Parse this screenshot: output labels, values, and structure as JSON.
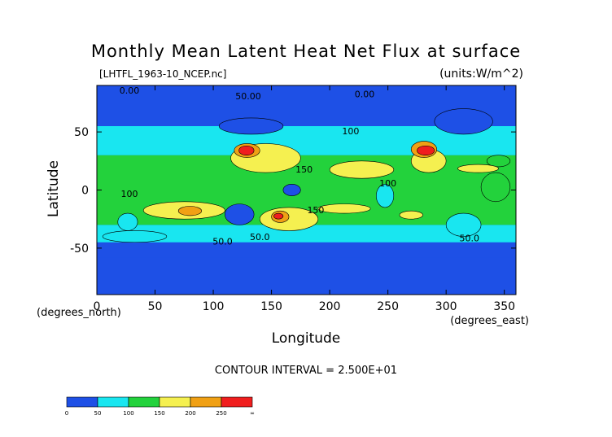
{
  "chart_data": {
    "type": "heatmap",
    "title": "Monthly Mean Latent Heat Net Flux at surface",
    "source_label": "[LHTFL_1963-10_NCEP.nc]",
    "units_label": "(units:W/m^2)",
    "xlabel": "Longitude",
    "ylabel": "Latitude",
    "x_units": "(degrees_east)",
    "y_units": "(degrees_north)",
    "xlim": [
      0,
      360
    ],
    "ylim": [
      -90,
      90
    ],
    "x_ticks": [
      0,
      50,
      100,
      150,
      200,
      250,
      300,
      350
    ],
    "y_ticks": [
      -50,
      0,
      50
    ],
    "contour_interval_text": "CONTOUR INTERVAL = 2.500E+01",
    "contour_labels": [
      {
        "text": "0.00",
        "x": 28,
        "y": 83
      },
      {
        "text": "50.00",
        "x": 130,
        "y": 78
      },
      {
        "text": "0.00",
        "x": 230,
        "y": 80
      },
      {
        "text": "100",
        "x": 218,
        "y": 48
      },
      {
        "text": "150",
        "x": 178,
        "y": 15
      },
      {
        "text": "100",
        "x": 250,
        "y": 3
      },
      {
        "text": "100",
        "x": 28,
        "y": -6
      },
      {
        "text": "150",
        "x": 188,
        "y": -20
      },
      {
        "text": "50.0",
        "x": 108,
        "y": -47
      },
      {
        "text": "50.0",
        "x": 140,
        "y": -43
      },
      {
        "text": "50.0",
        "x": 320,
        "y": -44
      }
    ],
    "grid": false,
    "legend": {
      "position": "bottom-left",
      "colors": [
        "#1e50e6",
        "#19e6f0",
        "#23d23c",
        "#f5f050",
        "#f0a014",
        "#f01e1e"
      ],
      "boundaries": [
        "0",
        "50",
        "100",
        "150",
        "200",
        "250",
        "∞"
      ]
    },
    "fields": {
      "background_level": 0,
      "band_levels": [
        {
          "lat": [
            -90,
            -75
          ],
          "level": 0
        },
        {
          "lat": [
            -75,
            -58
          ],
          "level": 0
        },
        {
          "lat": [
            -58,
            -45
          ],
          "level": 0
        },
        {
          "lat": [
            -45,
            -30
          ],
          "level": 1
        },
        {
          "lat": [
            -30,
            30
          ],
          "level": 2
        },
        {
          "lat": [
            30,
            55
          ],
          "level": 1
        },
        {
          "lat": [
            55,
            90
          ],
          "level": 0
        }
      ],
      "patches": [
        {
          "lon": [
            105,
            160
          ],
          "lat": [
            48,
            62
          ],
          "level": 0
        },
        {
          "lon": [
            290,
            340
          ],
          "lat": [
            48,
            70
          ],
          "level": 0
        },
        {
          "lon": [
            110,
            135
          ],
          "lat": [
            -30,
            -12
          ],
          "level": 0
        },
        {
          "lon": [
            160,
            175
          ],
          "lat": [
            -5,
            5
          ],
          "level": 0
        },
        {
          "lon": [
            240,
            255
          ],
          "lat": [
            -15,
            5
          ],
          "level": 1
        },
        {
          "lon": [
            5,
            60
          ],
          "lat": [
            -45,
            -35
          ],
          "level": 1
        },
        {
          "lon": [
            18,
            35
          ],
          "lat": [
            -35,
            -20
          ],
          "level": 1
        },
        {
          "lon": [
            300,
            330
          ],
          "lat": [
            -40,
            -20
          ],
          "level": 1
        },
        {
          "lon": [
            330,
            355
          ],
          "lat": [
            -10,
            15
          ],
          "level": 2
        },
        {
          "lon": [
            335,
            355
          ],
          "lat": [
            20,
            30
          ],
          "level": 2
        },
        {
          "lon": [
            115,
            175
          ],
          "lat": [
            15,
            40
          ],
          "level": 3
        },
        {
          "lon": [
            200,
            255
          ],
          "lat": [
            10,
            25
          ],
          "level": 3
        },
        {
          "lon": [
            270,
            300
          ],
          "lat": [
            15,
            35
          ],
          "level": 3
        },
        {
          "lon": [
            310,
            345
          ],
          "lat": [
            15,
            22
          ],
          "level": 3
        },
        {
          "lon": [
            40,
            110
          ],
          "lat": [
            -25,
            -10
          ],
          "level": 3
        },
        {
          "lon": [
            140,
            190
          ],
          "lat": [
            -35,
            -15
          ],
          "level": 3
        },
        {
          "lon": [
            190,
            235
          ],
          "lat": [
            -20,
            -12
          ],
          "level": 3
        },
        {
          "lon": [
            260,
            280
          ],
          "lat": [
            -25,
            -18
          ],
          "level": 3
        },
        {
          "lon": [
            118,
            140
          ],
          "lat": [
            28,
            40
          ],
          "level": 4
        },
        {
          "lon": [
            270,
            292
          ],
          "lat": [
            28,
            42
          ],
          "level": 4
        },
        {
          "lon": [
            150,
            165
          ],
          "lat": [
            -28,
            -18
          ],
          "level": 4
        },
        {
          "lon": [
            70,
            90
          ],
          "lat": [
            -22,
            -14
          ],
          "level": 4
        },
        {
          "lon": [
            122,
            135
          ],
          "lat": [
            30,
            38
          ],
          "level": 5
        },
        {
          "lon": [
            275,
            290
          ],
          "lat": [
            30,
            38
          ],
          "level": 5
        },
        {
          "lon": [
            152,
            160
          ],
          "lat": [
            -25,
            -20
          ],
          "level": 5
        }
      ]
    }
  }
}
